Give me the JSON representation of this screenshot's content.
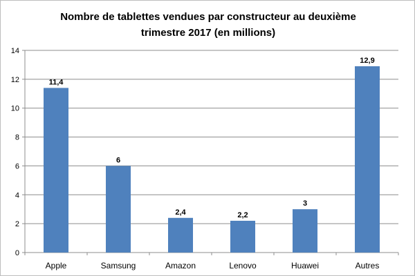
{
  "chart_data": {
    "type": "bar",
    "title_lines": [
      "Nombre de tablettes vendues par constructeur au deuxième",
      "trimestre 2017 (en millions)"
    ],
    "categories": [
      "Apple",
      "Samsung",
      "Amazon",
      "Lenovo",
      "Huawei",
      "Autres"
    ],
    "values": [
      11.4,
      6,
      2.4,
      2.2,
      3,
      12.9
    ],
    "data_labels": [
      "11,4",
      "6",
      "2,4",
      "2,2",
      "3",
      "12,9"
    ],
    "y_ticks": [
      0,
      2,
      4,
      6,
      8,
      10,
      12,
      14
    ],
    "ylim": [
      0,
      14
    ],
    "grid": true,
    "legend": "none",
    "bar_color": "#4f81bd"
  }
}
